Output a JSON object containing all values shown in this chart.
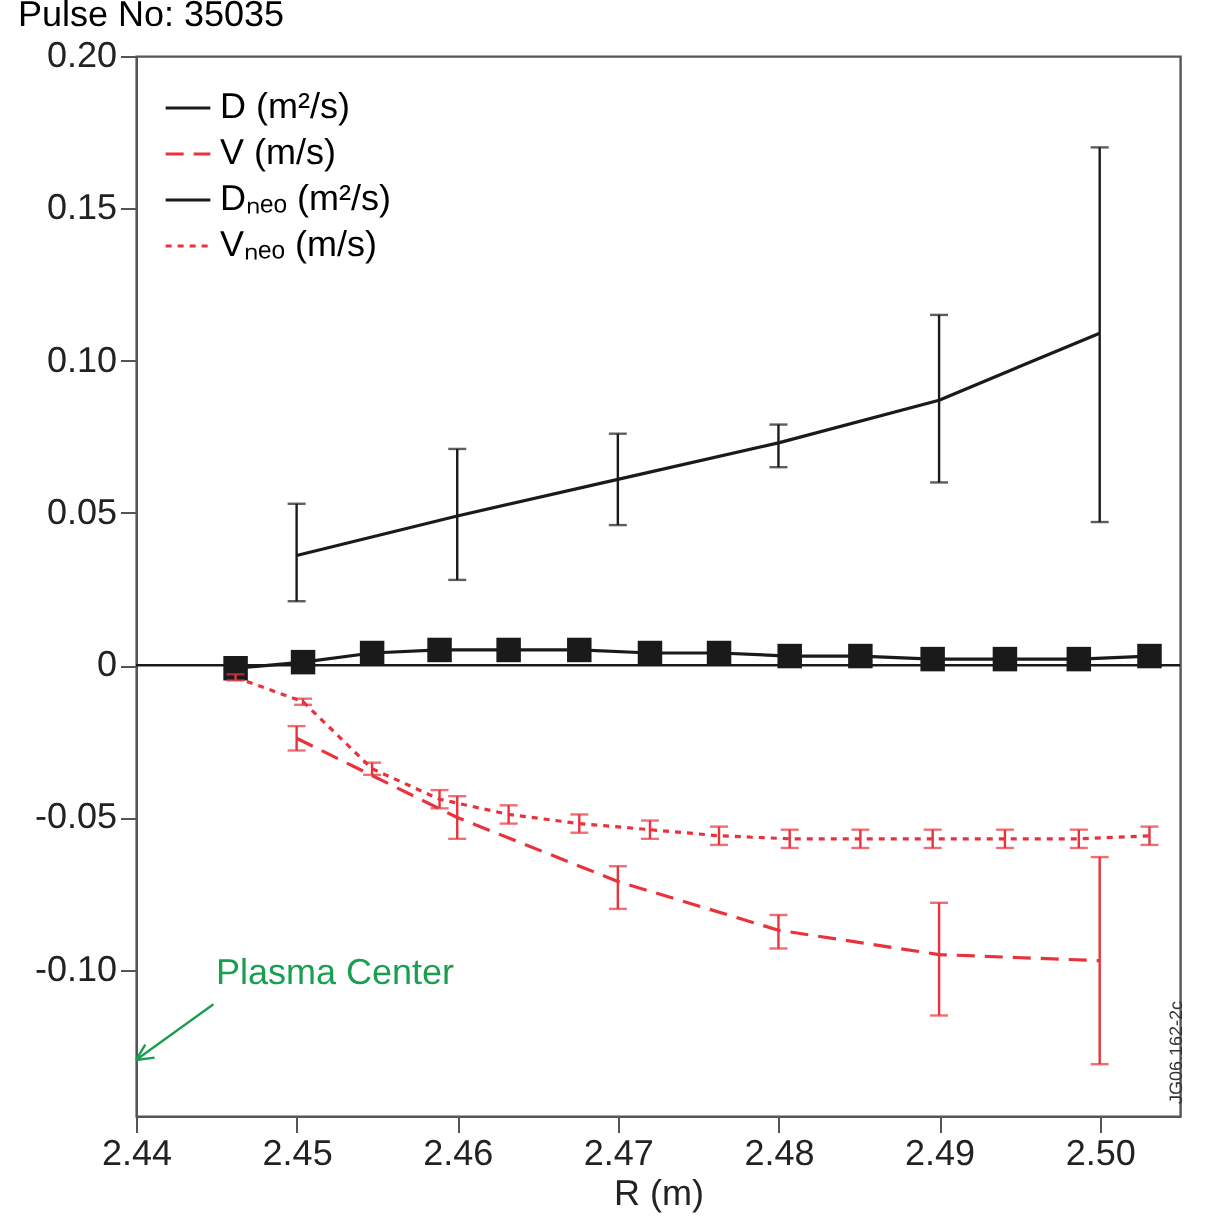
{
  "chart_data": {
    "type": "line",
    "title": "Pulse No: 35035",
    "xlabel": "R (m)",
    "xlim": [
      2.44,
      2.505
    ],
    "ylim": [
      -0.148,
      0.2
    ],
    "xticks": [
      2.44,
      2.45,
      2.46,
      2.47,
      2.48,
      2.49,
      {
        "value": 2.5,
        "label": "2.50"
      }
    ],
    "yticks": [
      {
        "value": 0.2,
        "label": "0.20"
      },
      0.15,
      {
        "value": 0.1,
        "label": "0.10"
      },
      0.05,
      0,
      -0.05,
      {
        "value": -0.1,
        "label": "-0.10"
      }
    ],
    "grid": false,
    "legend": "top left",
    "ref_lines": [
      {
        "axis": "y",
        "value": 0,
        "color": "#1a1a1a"
      }
    ],
    "annotations": [
      "Plasma Center",
      "JG06.162-2c"
    ],
    "series": [
      {
        "name": "D (m²/s)",
        "color": "#1a1a1a",
        "line_style": "solid",
        "marker": "none",
        "x": [
          2.45,
          2.46,
          2.47,
          2.48,
          2.49,
          2.5
        ],
        "values": [
          0.036,
          0.049,
          0.061,
          0.073,
          0.087,
          0.109
        ],
        "errors": [
          [
            0.021,
            0.053
          ],
          [
            0.028,
            0.071
          ],
          [
            0.046,
            0.076
          ],
          [
            0.065,
            0.079
          ],
          [
            0.06,
            0.115
          ],
          [
            0.047,
            0.17
          ]
        ]
      },
      {
        "name": "V (m/s)",
        "color": "#e8323c",
        "line_style": "dashed",
        "marker": "none",
        "x": [
          2.45,
          2.46,
          2.47,
          2.48,
          2.49,
          2.5
        ],
        "values": [
          -0.024,
          -0.05,
          -0.071,
          -0.087,
          -0.095,
          -0.097
        ],
        "errors": [
          [
            -0.028,
            -0.02
          ],
          [
            -0.057,
            -0.043
          ],
          [
            -0.08,
            -0.066
          ],
          [
            -0.093,
            -0.082
          ],
          [
            -0.115,
            -0.078
          ],
          [
            -0.131,
            -0.063
          ]
        ]
      },
      {
        "name": "Dₙₑₒ (m²/s)",
        "color": "#1a1a1a",
        "line_style": "solid",
        "marker": "square",
        "x": [
          2.4462,
          2.4504,
          2.4547,
          2.4589,
          2.4632,
          2.4676,
          2.472,
          2.4763,
          2.4807,
          2.4851,
          2.4896,
          2.4941,
          2.4987,
          2.5031
        ],
        "values": [
          -0.001,
          0.001,
          0.004,
          0.005,
          0.005,
          0.005,
          0.004,
          0.004,
          0.003,
          0.003,
          0.002,
          0.002,
          0.002,
          0.003
        ]
      },
      {
        "name": "Vₙₑₒ (m/s)",
        "color": "#e8323c",
        "line_style": "dotted",
        "marker": "none",
        "x": [
          2.4462,
          2.4504,
          2.4547,
          2.4589,
          2.4632,
          2.4676,
          2.472,
          2.4763,
          2.4807,
          2.4851,
          2.4896,
          2.4941,
          2.4987,
          2.5031
        ],
        "values": [
          -0.004,
          -0.012,
          -0.034,
          -0.044,
          -0.049,
          -0.052,
          -0.054,
          -0.056,
          -0.057,
          -0.057,
          -0.057,
          -0.057,
          -0.057,
          -0.056
        ],
        "errors": [
          [
            -0.005,
            -0.003
          ],
          [
            -0.013,
            -0.011
          ],
          [
            -0.036,
            -0.032
          ],
          [
            -0.047,
            -0.041
          ],
          [
            -0.052,
            -0.046
          ],
          [
            -0.055,
            -0.049
          ],
          [
            -0.057,
            -0.051
          ],
          [
            -0.059,
            -0.053
          ],
          [
            -0.06,
            -0.054
          ],
          [
            -0.06,
            -0.054
          ],
          [
            -0.06,
            -0.054
          ],
          [
            -0.06,
            -0.054
          ],
          [
            -0.06,
            -0.054
          ],
          [
            -0.059,
            -0.053
          ]
        ]
      }
    ]
  }
}
